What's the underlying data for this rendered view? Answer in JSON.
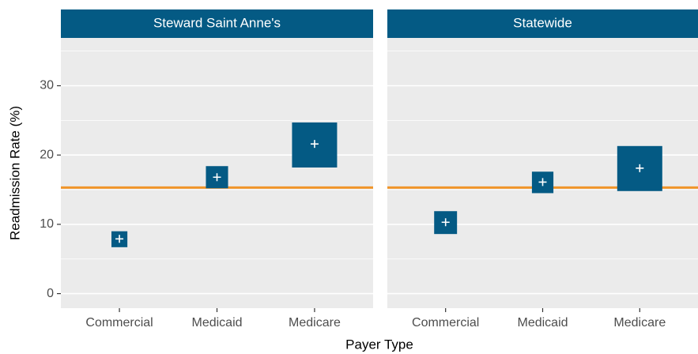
{
  "chart_data": {
    "type": "crossbox",
    "x_label": "Payer Type",
    "y_label": "Readmission Rate (%)",
    "ylim": [
      -2.1,
      36.9
    ],
    "yticks": [
      0,
      10,
      20,
      30
    ],
    "minor_yticks": [
      5,
      15,
      25,
      35
    ],
    "grid": true,
    "color": "#045a84",
    "strip_color": "#045a84",
    "reference_line": 15.3,
    "reference_color": "#f0952a",
    "panels": [
      {
        "title": "Steward Saint Anne's",
        "categories": [
          "Commercial",
          "Medicaid",
          "Medicare"
        ],
        "values": [
          7.9,
          16.8,
          21.6
        ],
        "lower": [
          6.7,
          15.2,
          18.2
        ],
        "upper": [
          9.0,
          18.4,
          24.7
        ]
      },
      {
        "title": "Statewide",
        "categories": [
          "Commercial",
          "Medicaid",
          "Medicare"
        ],
        "values": [
          10.3,
          16.1,
          18.1
        ],
        "lower": [
          8.6,
          14.5,
          14.8
        ],
        "upper": [
          11.9,
          17.6,
          21.3
        ]
      }
    ]
  }
}
